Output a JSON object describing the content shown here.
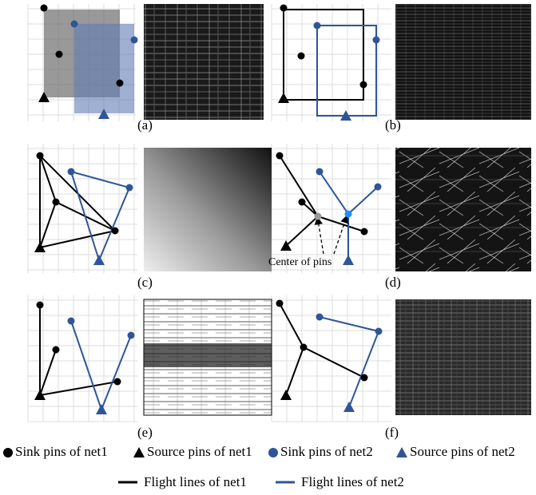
{
  "panels": [
    {
      "label": "(a)"
    },
    {
      "label": "(b)"
    },
    {
      "label": "(c)"
    },
    {
      "label": "(d)"
    },
    {
      "label": "(e)"
    },
    {
      "label": "(f)"
    }
  ],
  "annotation": "Center of pins",
  "legend": {
    "markers": [
      "Sink pins of net1",
      "Source pins of net1",
      "Sink pins of net2",
      "Source pins of net2"
    ],
    "lines": [
      "Flight lines of net1",
      "Flight lines of net2"
    ]
  }
}
